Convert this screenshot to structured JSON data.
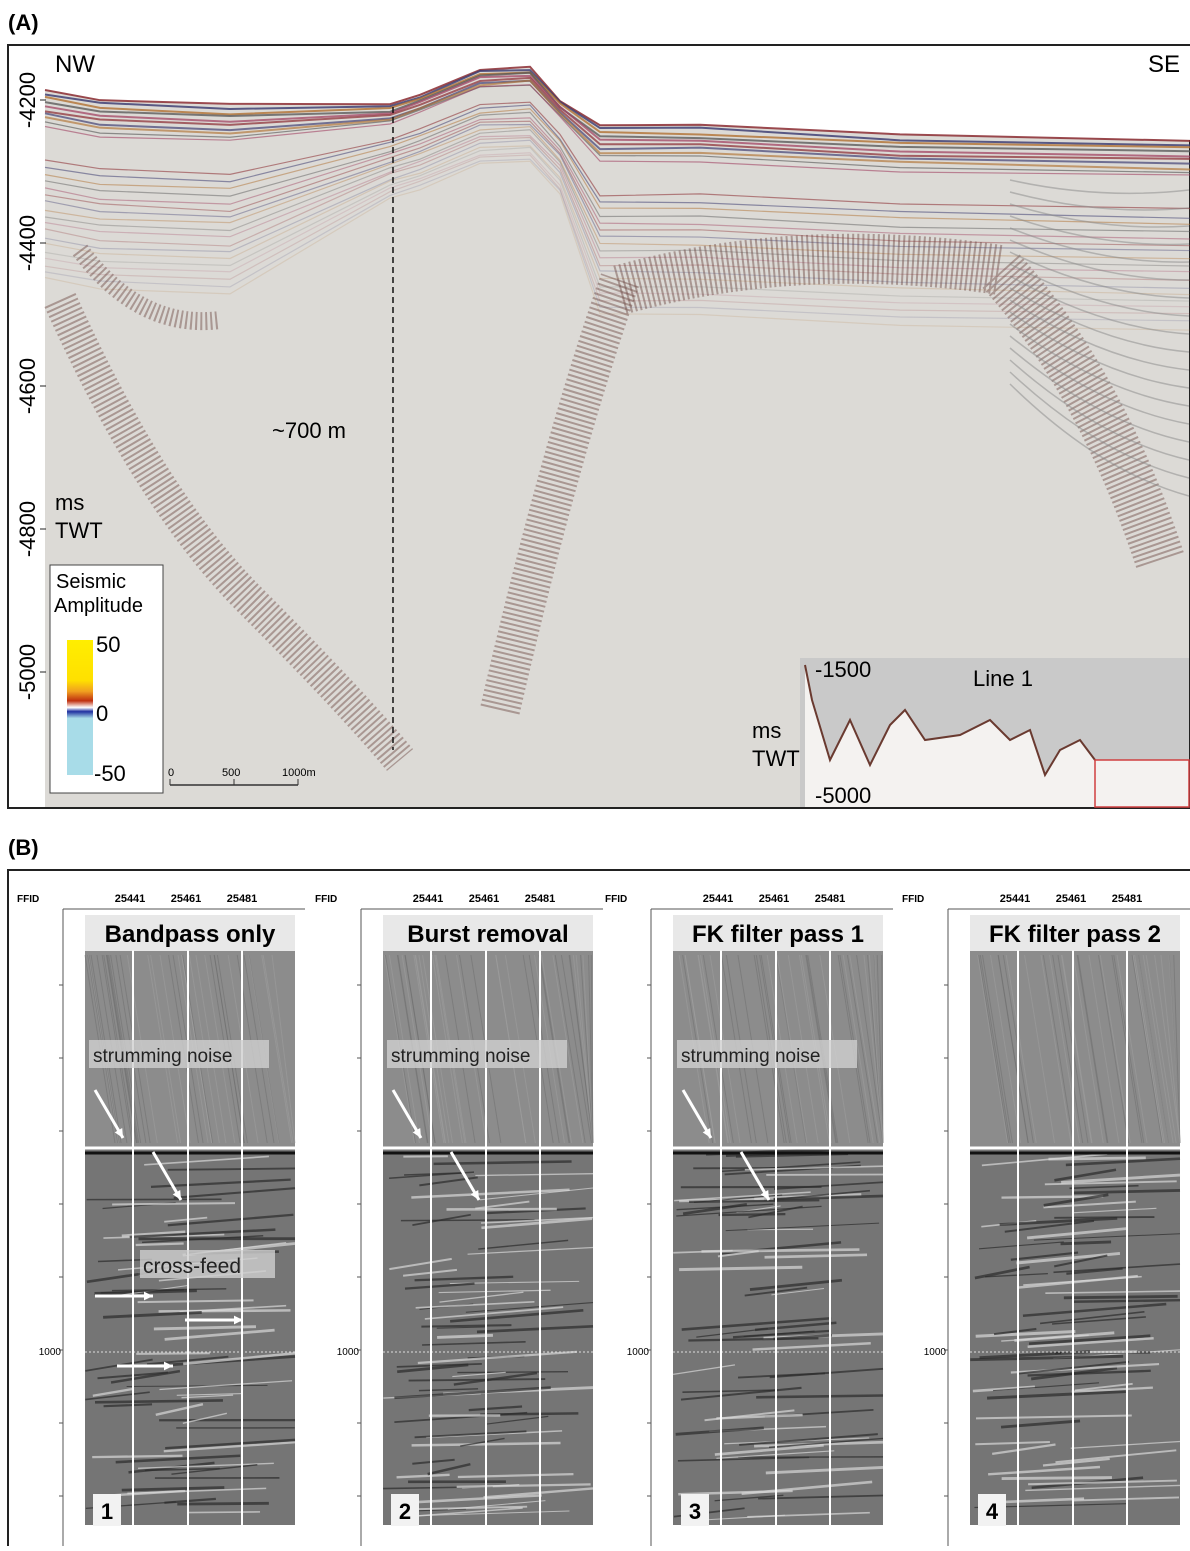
{
  "panel_a": {
    "label": "(A)",
    "left_direction": "NW",
    "right_direction": "SE",
    "y_ticks": [
      "-4200",
      "-4400",
      "-4600",
      "-4800",
      "-5000"
    ],
    "axis_unit": [
      "ms",
      "TWT"
    ],
    "depth_annotation": "~700 m",
    "colorbar": {
      "title": [
        "Seismic",
        "Amplitude"
      ],
      "ticks": [
        "50",
        "0",
        "-50"
      ]
    },
    "scale_bar": [
      "0",
      "500",
      "1000m"
    ],
    "inset": {
      "title": "Line 1",
      "ticks": [
        "-1500",
        "-5000"
      ],
      "axis_unit": [
        "ms",
        "TWT"
      ]
    }
  },
  "panel_b": {
    "label": "(B)",
    "axis_title": "FFID",
    "trace_ticks": [
      "25441",
      "25461",
      "25481"
    ],
    "depth_tick": "1000",
    "panels": [
      {
        "title": "Bandpass only",
        "number": "1",
        "annotations": [
          "strumming noise",
          "cross-feed"
        ]
      },
      {
        "title": "Burst removal",
        "number": "2",
        "annotations": [
          "strumming noise"
        ]
      },
      {
        "title": "FK filter pass 1",
        "number": "3",
        "annotations": [
          "strumming noise"
        ]
      },
      {
        "title": "FK filter pass 2",
        "number": "4",
        "annotations": []
      }
    ]
  }
}
